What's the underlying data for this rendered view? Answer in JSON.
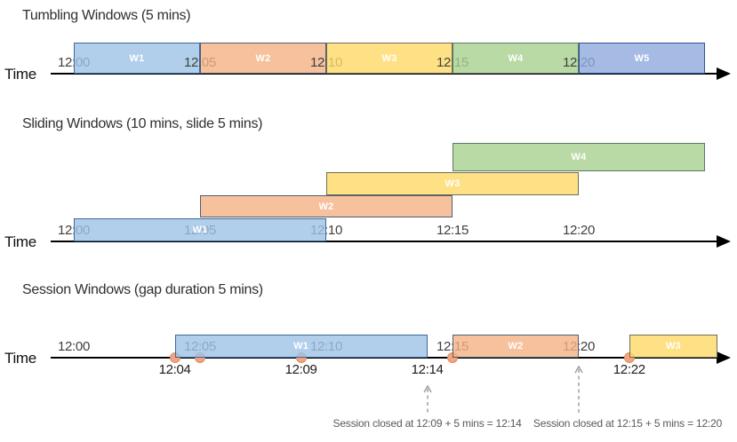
{
  "diagram": {
    "sections": [
      {
        "id": "tumbling",
        "title": "Tumbling Windows (5 mins)",
        "axis_label": "Time",
        "ticks": [
          {
            "label": "12:00",
            "min": 0
          },
          {
            "label": "12:05",
            "min": 5
          },
          {
            "label": "12:10",
            "min": 10
          },
          {
            "label": "12:15",
            "min": 15
          },
          {
            "label": "12:20",
            "min": 20
          }
        ],
        "windows": [
          {
            "label": "W1",
            "start_min": 0,
            "end_min": 5,
            "color": "blue",
            "row": 0
          },
          {
            "label": "W2",
            "start_min": 5,
            "end_min": 10,
            "color": "orange",
            "row": 0
          },
          {
            "label": "W3",
            "start_min": 10,
            "end_min": 15,
            "color": "yellow",
            "row": 0
          },
          {
            "label": "W4",
            "start_min": 15,
            "end_min": 20,
            "color": "green",
            "row": 0
          },
          {
            "label": "W5",
            "start_min": 20,
            "end_min": 25,
            "color": "periwinkle",
            "row": 0
          }
        ]
      },
      {
        "id": "sliding",
        "title": "Sliding Windows (10 mins, slide 5 mins)",
        "axis_label": "Time",
        "ticks": [
          {
            "label": "12:00",
            "min": 0
          },
          {
            "label": "12:05",
            "min": 5
          },
          {
            "label": "12:10",
            "min": 10
          },
          {
            "label": "12:15",
            "min": 15
          },
          {
            "label": "12:20",
            "min": 20
          }
        ],
        "windows": [
          {
            "label": "W1",
            "start_min": 0,
            "end_min": 10,
            "color": "blue",
            "row": 0
          },
          {
            "label": "W2",
            "start_min": 5,
            "end_min": 15,
            "color": "orange",
            "row": 1
          },
          {
            "label": "W3",
            "start_min": 10,
            "end_min": 20,
            "color": "yellow",
            "row": 2
          },
          {
            "label": "W4",
            "start_min": 15,
            "end_min": 25,
            "color": "green",
            "row": 3
          }
        ]
      },
      {
        "id": "session",
        "title": "Session Windows (gap duration 5 mins)",
        "axis_label": "Time",
        "ticks": [
          {
            "label": "12:00",
            "min": 0
          },
          {
            "label": "12:05",
            "min": 5
          },
          {
            "label": "12:10",
            "min": 10
          },
          {
            "label": "12:15",
            "min": 15
          },
          {
            "label": "12:20",
            "min": 20
          }
        ],
        "windows": [
          {
            "label": "W1",
            "start_min": 4,
            "end_min": 14,
            "color": "blue",
            "row": 0
          },
          {
            "label": "W2",
            "start_min": 15,
            "end_min": 20,
            "color": "orange",
            "row": 0
          },
          {
            "label": "W3",
            "start_min": 22,
            "end_min": null,
            "color": "yellow",
            "row": 0
          }
        ],
        "events": [
          {
            "min": 4
          },
          {
            "min": 5
          },
          {
            "min": 9
          },
          {
            "min": 15
          },
          {
            "min": 22
          }
        ],
        "event_labels": [
          {
            "label": "12:04",
            "min": 4
          },
          {
            "label": "12:09",
            "min": 9
          },
          {
            "label": "12:14",
            "min": 14
          },
          {
            "label": "12:22",
            "min": 22
          }
        ],
        "closure_arrows": [
          {
            "at_min": 14
          },
          {
            "at_min": 20
          }
        ],
        "annotations": [
          {
            "text": "Session closed at 12:09 + 5 mins = 12:14",
            "at_min": 14
          },
          {
            "text": "Session closed at 12:15 + 5 mins = 12:20",
            "at_min": 20
          }
        ]
      }
    ],
    "colors": {
      "blue": {
        "fill": "#9DC3E6",
        "border": "#3E689B"
      },
      "orange": {
        "fill": "#F4B183",
        "border": "#4E5E70"
      },
      "yellow": {
        "fill": "#FFD966",
        "border": "#6E6E58"
      },
      "green": {
        "fill": "#A9D18E",
        "border": "#5C7868"
      },
      "periwinkle": {
        "fill": "#8FAADC",
        "border": "#31549B"
      },
      "event_dot_fill": "#F2A482",
      "event_dot_border": "#DD8A5B",
      "annotation_text": "#595959",
      "dashed_arrow": "#9B9B9B",
      "axis": "#000000"
    },
    "window_opacity": 0.8
  }
}
